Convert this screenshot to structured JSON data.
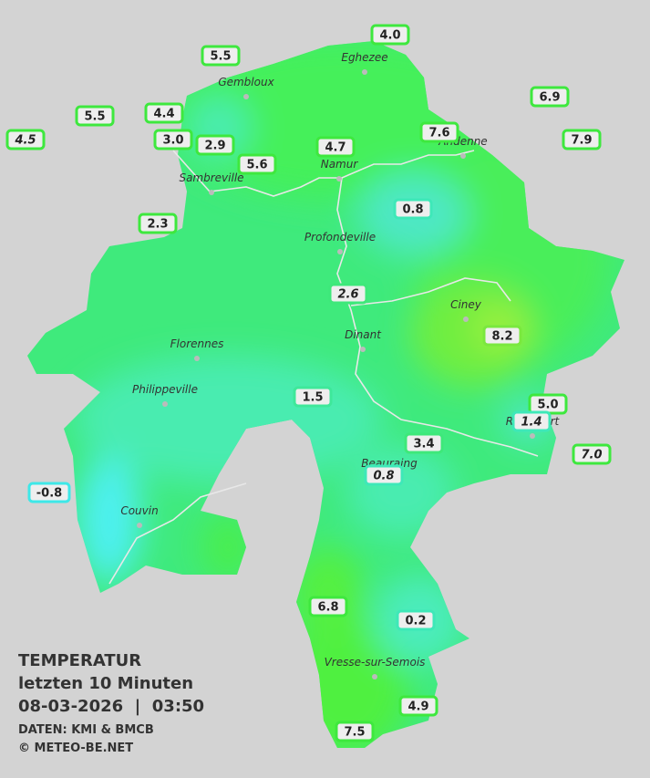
{
  "cities": [
    "Eghezee",
    "Gembloux",
    "Andenne",
    "Namur",
    "Sambreville",
    "Profondeville",
    "Ciney",
    "Dinant",
    "Florennes",
    "Philippeville",
    "Rochefort",
    "Beauraing",
    "Couvin",
    "Vresse-sur-Semois"
  ],
  "stations": [
    {
      "label": "4.0",
      "border": "#3ee83e"
    },
    {
      "label": "5.5",
      "border": "#3ee83e"
    },
    {
      "label": "6.9",
      "border": "#3ee83e"
    },
    {
      "label": "5.5",
      "border": "#3ee83e"
    },
    {
      "label": "4.4",
      "border": "#3ee83e"
    },
    {
      "label": "4.5",
      "border": "#3ee83e",
      "italic": true
    },
    {
      "label": "3.0",
      "border": "#3ee83e"
    },
    {
      "label": "2.9",
      "border": "#3ee83e"
    },
    {
      "label": "7.6",
      "border": "#3ee83e"
    },
    {
      "label": "4.7",
      "border": "#3ee83e"
    },
    {
      "label": "7.9",
      "border": "#3ee83e"
    },
    {
      "label": "5.6",
      "border": "#3ee83e"
    },
    {
      "label": "0.8",
      "border": "#3ee8b8"
    },
    {
      "label": "2.3",
      "border": "#3ee83e"
    },
    {
      "label": "2.6",
      "border": "#3ee87a",
      "italic": true
    },
    {
      "label": "8.2",
      "border": "#7ae83e"
    },
    {
      "label": "1.5",
      "border": "#3ee89a"
    },
    {
      "label": "5.0",
      "border": "#3ee83e"
    },
    {
      "label": "1.4",
      "border": "#3ee8b8",
      "italic": true
    },
    {
      "label": "7.0",
      "border": "#3ee83e",
      "italic": true
    },
    {
      "label": "3.4",
      "border": "#3ee87a"
    },
    {
      "label": "0.8",
      "border": "#3ee8b8",
      "italic": true
    },
    {
      "label": "-0.8",
      "border": "#3ee8e8"
    },
    {
      "label": "6.8",
      "border": "#3ee83e"
    },
    {
      "label": "0.2",
      "border": "#3ee8b8"
    },
    {
      "label": "4.9",
      "border": "#3ee83e"
    },
    {
      "label": "7.5",
      "border": "#3ee83e"
    }
  ],
  "info": {
    "title": "TEMPERATUR",
    "period": "letzten 10 Minuten",
    "datetime": "08-03-2026  |  03:50",
    "source": "DATEN: KMI & BMCB",
    "copyright": "© METEO-BE.NET"
  }
}
